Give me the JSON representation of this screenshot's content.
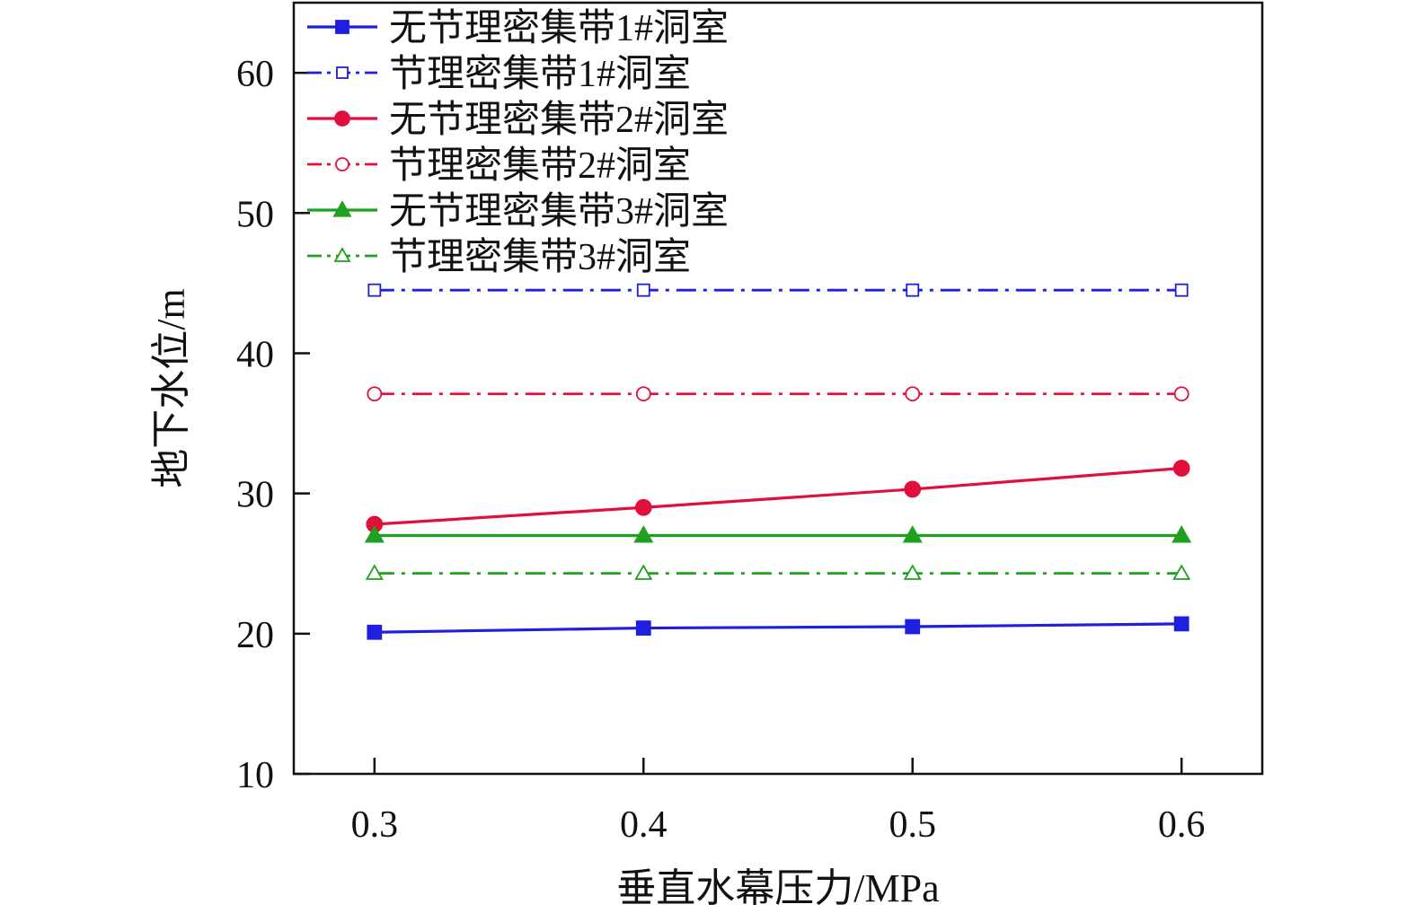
{
  "chart_data": {
    "type": "line",
    "xlabel": "垂直水幕压力/MPa",
    "ylabel": "地下水位/m",
    "x": [
      0.3,
      0.4,
      0.5,
      0.6
    ],
    "x_tick_labels": [
      "0.3",
      "0.4",
      "0.5",
      "0.6"
    ],
    "xlim": [
      0.27,
      0.63
    ],
    "ylim": [
      10,
      65
    ],
    "y_ticks": [
      10,
      20,
      30,
      40,
      50,
      60
    ],
    "y_tick_labels": [
      "10",
      "20",
      "30",
      "40",
      "50",
      "60"
    ],
    "grid": false,
    "legend_position": "top-left",
    "series": [
      {
        "name": "无节理密集带1#洞室",
        "values": [
          20.1,
          20.4,
          20.5,
          20.7
        ],
        "color": "#1f1fe0",
        "line": "solid",
        "marker": "square",
        "filled": true
      },
      {
        "name": "节理密集带1#洞室",
        "values": [
          44.5,
          44.5,
          44.5,
          44.5
        ],
        "color": "#1f1fe0",
        "line": "dashdot",
        "marker": "square",
        "filled": false
      },
      {
        "name": "无节理密集带2#洞室",
        "values": [
          27.8,
          29.0,
          30.3,
          31.8
        ],
        "color": "#e0103a",
        "line": "solid",
        "marker": "circle",
        "filled": true
      },
      {
        "name": "节理密集带2#洞室",
        "values": [
          37.1,
          37.1,
          37.1,
          37.1
        ],
        "color": "#e0103a",
        "line": "dashdot",
        "marker": "circle",
        "filled": false
      },
      {
        "name": "无节理密集带3#洞室",
        "values": [
          27.0,
          27.0,
          27.0,
          27.0
        ],
        "color": "#1fa01f",
        "line": "solid",
        "marker": "triangle",
        "filled": true
      },
      {
        "name": "节理密集带3#洞室",
        "values": [
          24.3,
          24.3,
          24.3,
          24.3
        ],
        "color": "#1fa01f",
        "line": "dashdot",
        "marker": "triangle",
        "filled": false
      }
    ]
  }
}
